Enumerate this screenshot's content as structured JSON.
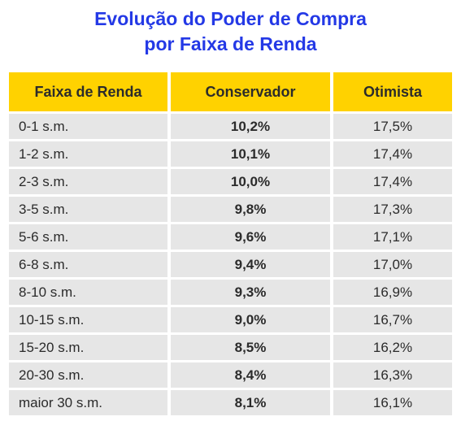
{
  "title_line1": "Evolução do Poder de Compra",
  "title_line2": "por Faixa de Renda",
  "chart_data": {
    "type": "table",
    "columns": [
      "Faixa de Renda",
      "Conservador",
      "Otimista"
    ],
    "rows": [
      [
        "0-1 s.m.",
        "10,2%",
        "17,5%"
      ],
      [
        "1-2 s.m.",
        "10,1%",
        "17,4%"
      ],
      [
        "2-3 s.m.",
        "10,0%",
        "17,4%"
      ],
      [
        "3-5 s.m.",
        "9,8%",
        "17,3%"
      ],
      [
        "5-6 s.m.",
        "9,6%",
        "17,1%"
      ],
      [
        "6-8 s.m.",
        "9,4%",
        "17,0%"
      ],
      [
        "8-10 s.m.",
        "9,3%",
        "16,9%"
      ],
      [
        "10-15 s.m.",
        "9,0%",
        "16,7%"
      ],
      [
        "15-20 s.m.",
        "8,5%",
        "16,2%"
      ],
      [
        "20-30 s.m.",
        "8,4%",
        "16,3%"
      ],
      [
        "maior 30 s.m.",
        "8,1%",
        "16,1%"
      ]
    ]
  },
  "colors": {
    "title": "#2439e6",
    "header_bg": "#ffd200",
    "row_bg": "#e6e6e6",
    "text": "#2b2b2b"
  }
}
